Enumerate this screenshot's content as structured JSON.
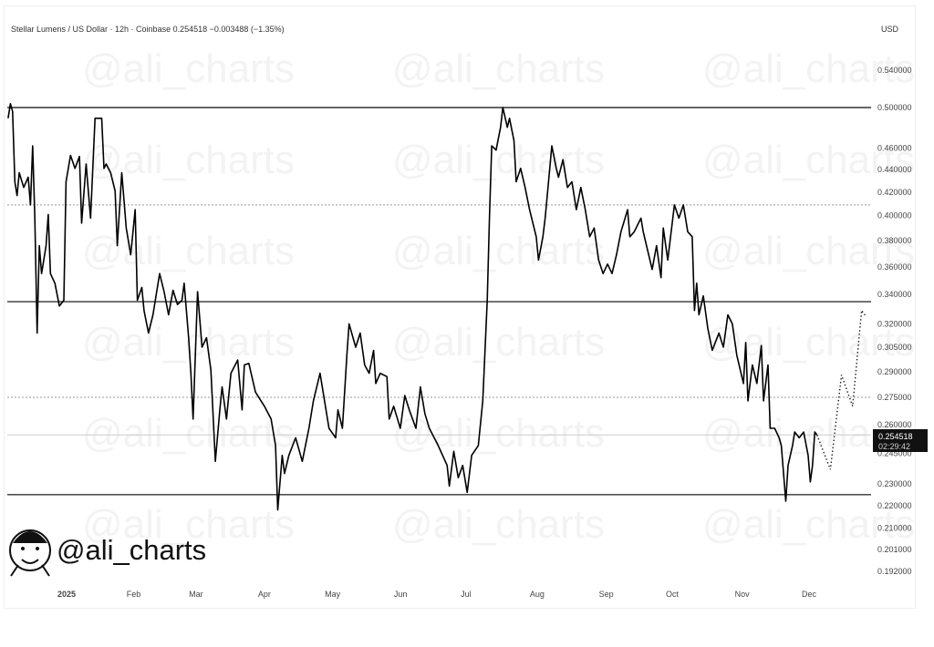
{
  "header": {
    "title": "Stellar Lumens / US Dollar · 12h · Coinbase  0.254518  −0.003488 (−1.35%)",
    "currency": "USD"
  },
  "watermark": "@ali_charts",
  "logo": {
    "text": "@ali_charts"
  },
  "price_label": {
    "price": "0.254518",
    "countdown": "02:29:42"
  },
  "chart_data": {
    "type": "line",
    "title": "Stellar Lumens / US Dollar · 12h · Coinbase",
    "yscale": "log",
    "ylabel": "USD",
    "ylim": [
      0.188,
      0.56
    ],
    "grid": false,
    "yticks": [
      "0.540000",
      "0.500000",
      "0.460000",
      "0.440000",
      "0.420000",
      "0.400000",
      "0.380000",
      "0.360000",
      "0.340000",
      "0.320000",
      "0.305000",
      "0.290000",
      "0.275000",
      "0.260000",
      "0.245000",
      "0.230000",
      "0.220000",
      "0.210000",
      "0.201000",
      "0.192000"
    ],
    "xticks": [
      {
        "label": "2025",
        "date": "2025-01-01"
      },
      {
        "label": "Feb",
        "date": "2025-02-01"
      },
      {
        "label": "Mar",
        "date": "2025-03-01"
      },
      {
        "label": "Apr",
        "date": "2025-04-01"
      },
      {
        "label": "May",
        "date": "2025-05-01"
      },
      {
        "label": "Jun",
        "date": "2025-06-01"
      },
      {
        "label": "Jul",
        "date": "2025-07-01"
      },
      {
        "label": "Aug",
        "date": "2025-08-01"
      },
      {
        "label": "Sep",
        "date": "2025-09-01"
      },
      {
        "label": "Oct",
        "date": "2025-10-01"
      },
      {
        "label": "Nov",
        "date": "2025-11-01"
      },
      {
        "label": "Dec",
        "date": "2025-12-01"
      }
    ],
    "levels": [
      {
        "price": 0.5,
        "style": "solid"
      },
      {
        "price": 0.409,
        "style": "dotted"
      },
      {
        "price": 0.335,
        "style": "solid"
      },
      {
        "price": 0.275,
        "style": "dotted"
      },
      {
        "price": 0.2545,
        "style": "current"
      },
      {
        "price": 0.225,
        "style": "solid"
      }
    ],
    "line_color": "#000000",
    "series": [
      {
        "points": [
          [
            "2024-12-07",
            0.489
          ],
          [
            "2024-12-08",
            0.504
          ],
          [
            "2024-12-09",
            0.496
          ],
          [
            "2024-12-10",
            0.429
          ],
          [
            "2024-12-11",
            0.417
          ],
          [
            "2024-12-12",
            0.437
          ],
          [
            "2024-12-14",
            0.424
          ],
          [
            "2024-12-16",
            0.433
          ],
          [
            "2024-12-17",
            0.409
          ],
          [
            "2024-12-18",
            0.462
          ],
          [
            "2024-12-19",
            0.398
          ],
          [
            "2024-12-20",
            0.314
          ],
          [
            "2024-12-21",
            0.376
          ],
          [
            "2024-12-22",
            0.355
          ],
          [
            "2024-12-24",
            0.376
          ],
          [
            "2024-12-25",
            0.401
          ],
          [
            "2024-12-26",
            0.355
          ],
          [
            "2024-12-28",
            0.348
          ],
          [
            "2024-12-30",
            0.332
          ],
          [
            "2025-01-01",
            0.336
          ],
          [
            "2025-01-02",
            0.429
          ],
          [
            "2025-01-04",
            0.453
          ],
          [
            "2025-01-06",
            0.441
          ],
          [
            "2025-01-08",
            0.452
          ],
          [
            "2025-01-09",
            0.394
          ],
          [
            "2025-01-11",
            0.445
          ],
          [
            "2025-01-13",
            0.398
          ],
          [
            "2025-01-15",
            0.489
          ],
          [
            "2025-01-18",
            0.489
          ],
          [
            "2025-01-19",
            0.441
          ],
          [
            "2025-01-20",
            0.445
          ],
          [
            "2025-01-22",
            0.437
          ],
          [
            "2025-01-24",
            0.421
          ],
          [
            "2025-01-25",
            0.376
          ],
          [
            "2025-01-27",
            0.437
          ],
          [
            "2025-01-29",
            0.39
          ],
          [
            "2025-01-31",
            0.369
          ],
          [
            "2025-02-02",
            0.405
          ],
          [
            "2025-02-03",
            0.336
          ],
          [
            "2025-02-05",
            0.345
          ],
          [
            "2025-02-06",
            0.329
          ],
          [
            "2025-02-08",
            0.314
          ],
          [
            "2025-02-10",
            0.326
          ],
          [
            "2025-02-13",
            0.355
          ],
          [
            "2025-02-15",
            0.342
          ],
          [
            "2025-02-17",
            0.326
          ],
          [
            "2025-02-19",
            0.343
          ],
          [
            "2025-02-21",
            0.333
          ],
          [
            "2025-02-23",
            0.336
          ],
          [
            "2025-02-24",
            0.348
          ],
          [
            "2025-02-26",
            0.311
          ],
          [
            "2025-02-27",
            0.289
          ],
          [
            "2025-02-28",
            0.263
          ],
          [
            "2025-03-02",
            0.342
          ],
          [
            "2025-03-04",
            0.305
          ],
          [
            "2025-03-06",
            0.311
          ],
          [
            "2025-03-08",
            0.291
          ],
          [
            "2025-03-10",
            0.241
          ],
          [
            "2025-03-12",
            0.268
          ],
          [
            "2025-03-13",
            0.281
          ],
          [
            "2025-03-15",
            0.263
          ],
          [
            "2025-03-17",
            0.289
          ],
          [
            "2025-03-20",
            0.297
          ],
          [
            "2025-03-22",
            0.268
          ],
          [
            "2025-03-23",
            0.294
          ],
          [
            "2025-03-25",
            0.295
          ],
          [
            "2025-03-28",
            0.278
          ],
          [
            "2025-04-01",
            0.27
          ],
          [
            "2025-04-04",
            0.263
          ],
          [
            "2025-04-06",
            0.249
          ],
          [
            "2025-04-07",
            0.218
          ],
          [
            "2025-04-09",
            0.244
          ],
          [
            "2025-04-10",
            0.235
          ],
          [
            "2025-04-12",
            0.244
          ],
          [
            "2025-04-15",
            0.253
          ],
          [
            "2025-04-18",
            0.241
          ],
          [
            "2025-04-21",
            0.258
          ],
          [
            "2025-04-23",
            0.273
          ],
          [
            "2025-04-26",
            0.289
          ],
          [
            "2025-04-28",
            0.273
          ],
          [
            "2025-04-30",
            0.258
          ],
          [
            "2025-05-03",
            0.253
          ],
          [
            "2025-05-04",
            0.268
          ],
          [
            "2025-05-06",
            0.258
          ],
          [
            "2025-05-08",
            0.3
          ],
          [
            "2025-05-09",
            0.32
          ],
          [
            "2025-05-12",
            0.305
          ],
          [
            "2025-05-14",
            0.314
          ],
          [
            "2025-05-16",
            0.294
          ],
          [
            "2025-05-18",
            0.289
          ],
          [
            "2025-05-20",
            0.303
          ],
          [
            "2025-05-21",
            0.283
          ],
          [
            "2025-05-23",
            0.289
          ],
          [
            "2025-05-26",
            0.287
          ],
          [
            "2025-05-27",
            0.263
          ],
          [
            "2025-05-29",
            0.27
          ],
          [
            "2025-06-01",
            0.258
          ],
          [
            "2025-06-03",
            0.276
          ],
          [
            "2025-06-05",
            0.268
          ],
          [
            "2025-06-08",
            0.258
          ],
          [
            "2025-06-10",
            0.281
          ],
          [
            "2025-06-12",
            0.266
          ],
          [
            "2025-06-14",
            0.258
          ],
          [
            "2025-06-18",
            0.249
          ],
          [
            "2025-06-22",
            0.239
          ],
          [
            "2025-06-23",
            0.229
          ],
          [
            "2025-06-25",
            0.246
          ],
          [
            "2025-06-27",
            0.233
          ],
          [
            "2025-06-29",
            0.239
          ],
          [
            "2025-07-01",
            0.226
          ],
          [
            "2025-07-03",
            0.244
          ],
          [
            "2025-07-06",
            0.249
          ],
          [
            "2025-07-08",
            0.273
          ],
          [
            "2025-07-10",
            0.336
          ],
          [
            "2025-07-11",
            0.398
          ],
          [
            "2025-07-12",
            0.462
          ],
          [
            "2025-07-14",
            0.458
          ],
          [
            "2025-07-16",
            0.48
          ],
          [
            "2025-07-17",
            0.5
          ],
          [
            "2025-07-19",
            0.48
          ],
          [
            "2025-07-20",
            0.489
          ],
          [
            "2025-07-22",
            0.467
          ],
          [
            "2025-07-23",
            0.429
          ],
          [
            "2025-07-25",
            0.441
          ],
          [
            "2025-07-27",
            0.424
          ],
          [
            "2025-07-29",
            0.405
          ],
          [
            "2025-08-01",
            0.383
          ],
          [
            "2025-08-02",
            0.365
          ],
          [
            "2025-08-04",
            0.383
          ],
          [
            "2025-08-05",
            0.398
          ],
          [
            "2025-08-08",
            0.462
          ],
          [
            "2025-08-10",
            0.441
          ],
          [
            "2025-08-11",
            0.433
          ],
          [
            "2025-08-13",
            0.449
          ],
          [
            "2025-08-15",
            0.424
          ],
          [
            "2025-08-17",
            0.429
          ],
          [
            "2025-08-19",
            0.405
          ],
          [
            "2025-08-21",
            0.424
          ],
          [
            "2025-08-23",
            0.405
          ],
          [
            "2025-08-25",
            0.383
          ],
          [
            "2025-08-27",
            0.39
          ],
          [
            "2025-08-29",
            0.365
          ],
          [
            "2025-08-31",
            0.355
          ],
          [
            "2025-09-02",
            0.362
          ],
          [
            "2025-09-04",
            0.355
          ],
          [
            "2025-09-06",
            0.369
          ],
          [
            "2025-09-08",
            0.387
          ],
          [
            "2025-09-11",
            0.405
          ],
          [
            "2025-09-12",
            0.383
          ],
          [
            "2025-09-14",
            0.387
          ],
          [
            "2025-09-17",
            0.398
          ],
          [
            "2025-09-18",
            0.387
          ],
          [
            "2025-09-22",
            0.358
          ],
          [
            "2025-09-24",
            0.376
          ],
          [
            "2025-09-26",
            0.352
          ],
          [
            "2025-09-27",
            0.39
          ],
          [
            "2025-09-29",
            0.365
          ],
          [
            "2025-10-02",
            0.409
          ],
          [
            "2025-10-04",
            0.398
          ],
          [
            "2025-10-06",
            0.409
          ],
          [
            "2025-10-08",
            0.387
          ],
          [
            "2025-10-10",
            0.383
          ],
          [
            "2025-10-11",
            0.329
          ],
          [
            "2025-10-12",
            0.348
          ],
          [
            "2025-10-13",
            0.326
          ],
          [
            "2025-10-15",
            0.339
          ],
          [
            "2025-10-17",
            0.317
          ],
          [
            "2025-10-19",
            0.303
          ],
          [
            "2025-10-22",
            0.314
          ],
          [
            "2025-10-24",
            0.305
          ],
          [
            "2025-10-26",
            0.326
          ],
          [
            "2025-10-28",
            0.32
          ],
          [
            "2025-10-30",
            0.3
          ],
          [
            "2025-11-02",
            0.283
          ],
          [
            "2025-11-03",
            0.308
          ],
          [
            "2025-11-04",
            0.273
          ],
          [
            "2025-11-06",
            0.294
          ],
          [
            "2025-11-08",
            0.283
          ],
          [
            "2025-11-10",
            0.306
          ],
          [
            "2025-11-11",
            0.273
          ],
          [
            "2025-11-13",
            0.294
          ],
          [
            "2025-11-14",
            0.258
          ],
          [
            "2025-11-16",
            0.258
          ],
          [
            "2025-11-18",
            0.253
          ],
          [
            "2025-11-19",
            0.249
          ],
          [
            "2025-11-21",
            0.222
          ],
          [
            "2025-11-22",
            0.239
          ],
          [
            "2025-11-24",
            0.249
          ],
          [
            "2025-11-25",
            0.256
          ],
          [
            "2025-11-27",
            0.253
          ],
          [
            "2025-11-29",
            0.256
          ],
          [
            "2025-12-01",
            0.244
          ],
          [
            "2025-12-02",
            0.231
          ],
          [
            "2025-12-03",
            0.239
          ],
          [
            "2025-12-04",
            0.256
          ],
          [
            "2025-12-05",
            0.2545
          ]
        ]
      }
    ],
    "projection": {
      "style": "dotted",
      "points": [
        [
          "2025-12-05",
          0.2545
        ],
        [
          "2025-12-11",
          0.237
        ],
        [
          "2025-12-16",
          0.288
        ],
        [
          "2025-12-21",
          0.27
        ],
        [
          "2025-12-25",
          0.329
        ],
        [
          "2025-12-27",
          0.325
        ]
      ]
    }
  }
}
